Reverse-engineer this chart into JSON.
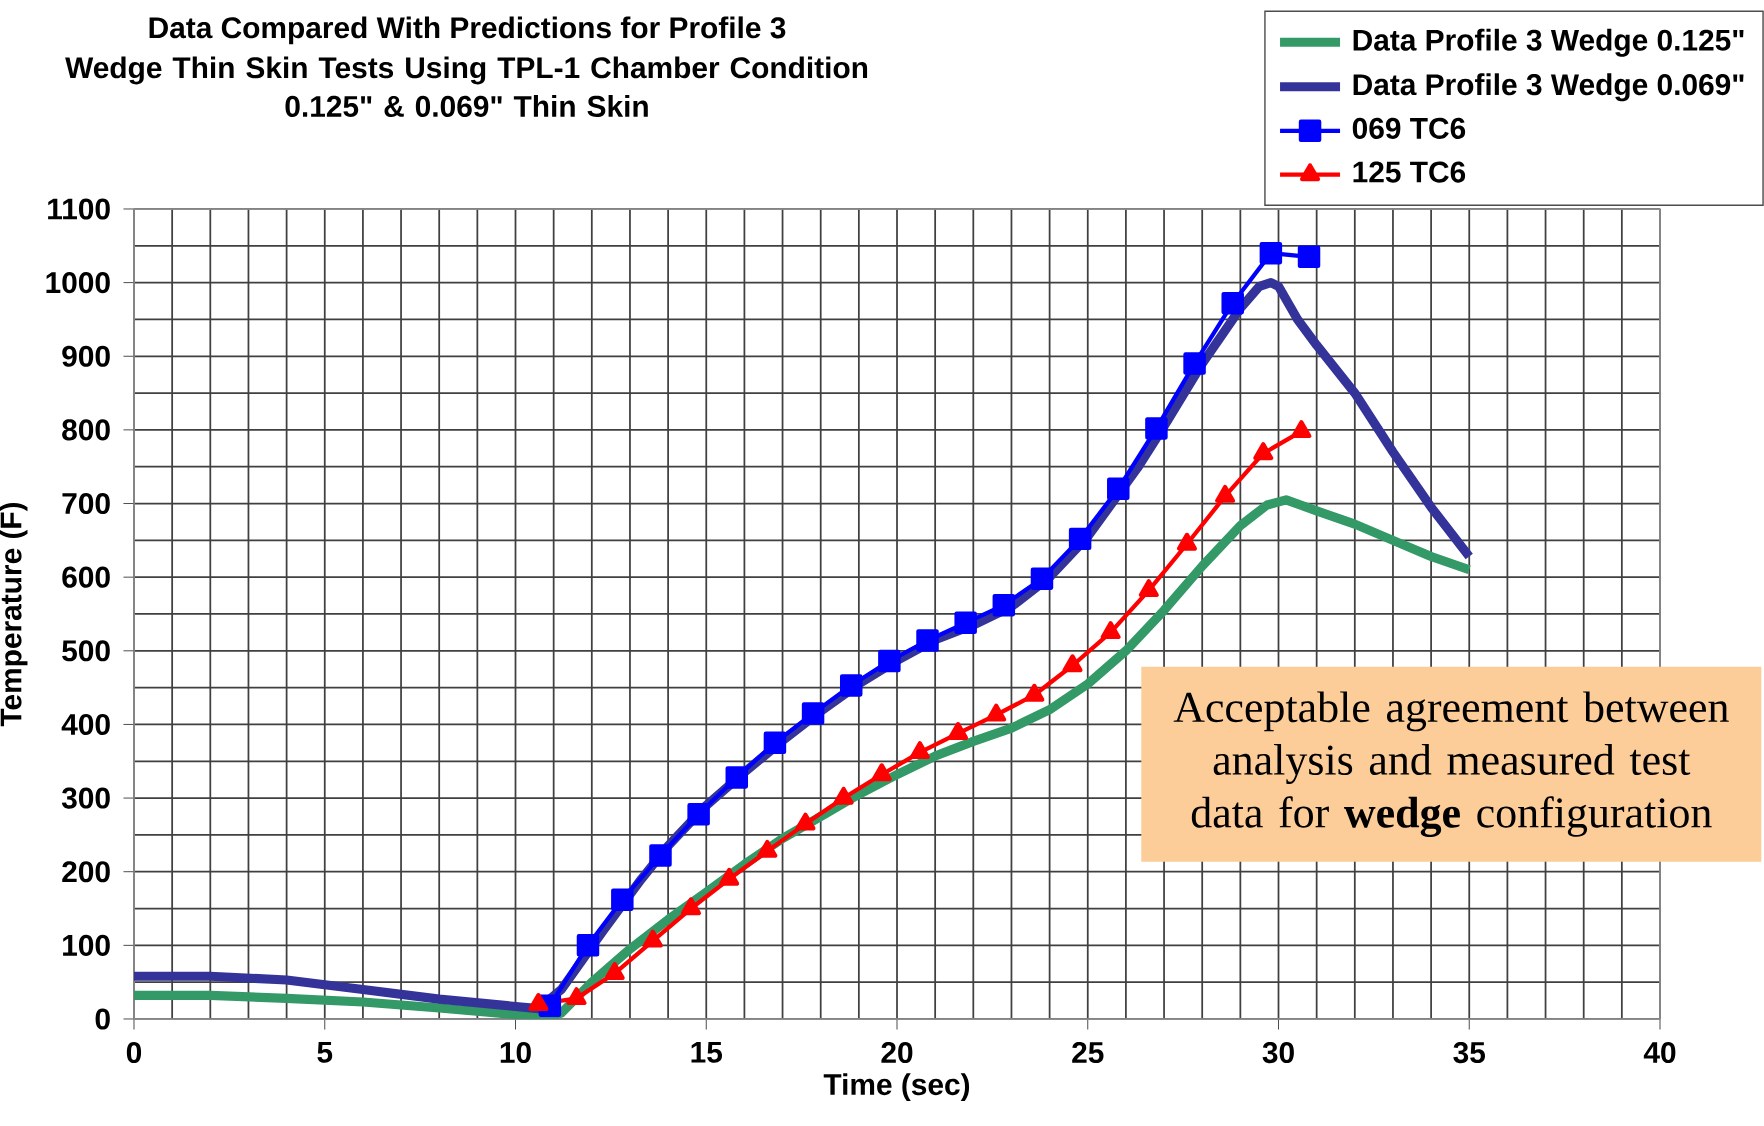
{
  "chart_data": {
    "type": "line",
    "title": "Data Compared With Predictions for Profile 3",
    "subtitle": "Wedge Thin Skin Tests Using TPL-1 Chamber Condition 0.125\" & 0.069\" Thin Skin",
    "xlabel": "Time (sec)",
    "ylabel": "Temperature (F)",
    "xlim": [
      0,
      40
    ],
    "xticks": [
      0,
      5,
      10,
      15,
      20,
      25,
      30,
      35,
      40
    ],
    "ylim": [
      0,
      1100
    ],
    "yticks": [
      0,
      100,
      200,
      300,
      400,
      500,
      600,
      700,
      800,
      900,
      1000,
      1100
    ],
    "grid": true,
    "legend": "top right",
    "annotations": [
      "Acceptable agreement between analysis and measured test data for **wedge** configuration"
    ],
    "series": [
      {
        "name": "Data Profile 3 Wedge 0.125\"",
        "color": "#339966",
        "marker": "none",
        "x": [
          0,
          2,
          4,
          6,
          8,
          10,
          10.8,
          11.2,
          12,
          13,
          14,
          15,
          16,
          17,
          18,
          19,
          20,
          21,
          22,
          23,
          24,
          25,
          26,
          27,
          28,
          29,
          29.7,
          30.2,
          31,
          32,
          33,
          34,
          35
        ],
        "values": [
          32,
          32,
          28,
          23,
          15,
          6,
          2,
          8,
          50,
          95,
          135,
          172,
          210,
          245,
          275,
          305,
          332,
          357,
          377,
          395,
          420,
          455,
          500,
          555,
          615,
          670,
          698,
          705,
          690,
          672,
          650,
          628,
          610
        ]
      },
      {
        "name": "Data Profile 3 Wedge 0.069\"",
        "color": "#333399",
        "marker": "none",
        "x": [
          0,
          2,
          4,
          6,
          8,
          10,
          10.6,
          11.2,
          12.3,
          13.3,
          14,
          15,
          16,
          17,
          18,
          19,
          20,
          21,
          22,
          23,
          24,
          25,
          26.3,
          27,
          28,
          29,
          29.5,
          29.8,
          30,
          30.5,
          31,
          32,
          33,
          34,
          35
        ],
        "values": [
          58,
          58,
          53,
          40,
          27,
          17,
          14,
          40,
          120,
          190,
          235,
          290,
          335,
          378,
          418,
          455,
          487,
          515,
          535,
          560,
          600,
          655,
          748,
          805,
          890,
          965,
          995,
          1000,
          995,
          950,
          915,
          850,
          770,
          695,
          628
        ]
      },
      {
        "name": "069 TC6",
        "color": "#0000ff",
        "marker": "square",
        "x": [
          10.9,
          11.9,
          12.8,
          13.8,
          14.8,
          15.8,
          16.8,
          17.8,
          18.8,
          19.8,
          20.8,
          21.8,
          22.8,
          23.8,
          24.8,
          25.8,
          26.8,
          27.8,
          28.8,
          29.8,
          30.8
        ],
        "values": [
          18,
          100,
          162,
          222,
          278,
          328,
          375,
          415,
          453,
          486,
          514,
          538,
          562,
          598,
          652,
          720,
          802,
          890,
          972,
          1040,
          1035
        ]
      },
      {
        "name": "125 TC6",
        "color": "#ff0000",
        "marker": "triangle",
        "x": [
          10.6,
          11.6,
          12.6,
          13.6,
          14.6,
          15.6,
          16.6,
          17.6,
          18.6,
          19.6,
          20.6,
          21.6,
          22.6,
          23.6,
          24.6,
          25.6,
          26.6,
          27.6,
          28.6,
          29.6,
          30.6
        ],
        "values": [
          20,
          28,
          62,
          106,
          150,
          190,
          228,
          265,
          300,
          332,
          362,
          388,
          413,
          440,
          480,
          525,
          582,
          645,
          710,
          768,
          798
        ]
      }
    ]
  }
}
